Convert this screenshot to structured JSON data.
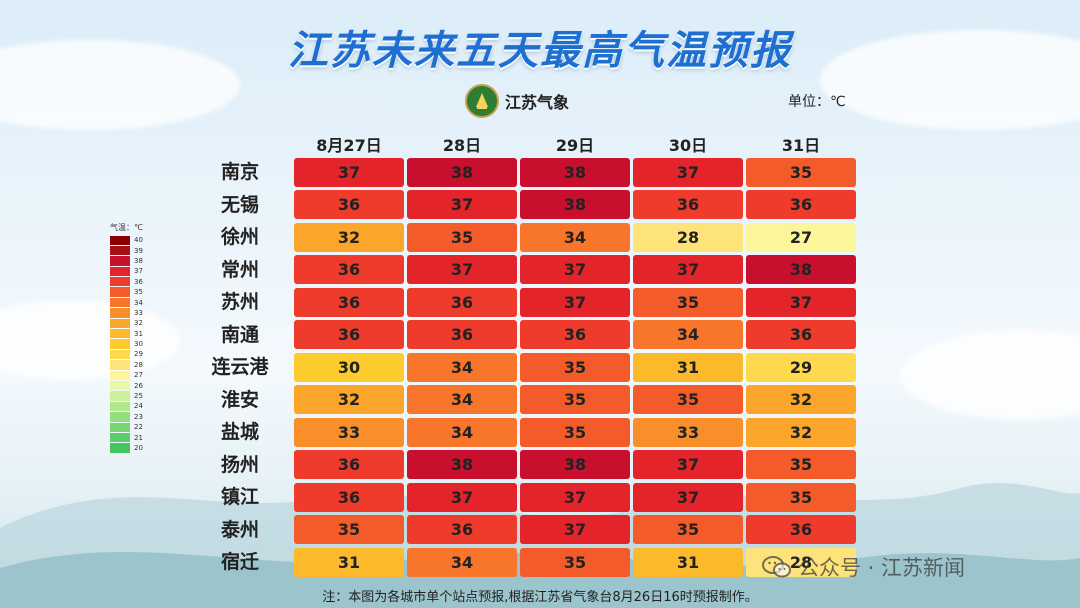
{
  "title": "江苏未来五天最高气温预报",
  "logo": {
    "text": "江苏气象"
  },
  "unit_label": "单位：℃",
  "note": "注：本图为各城市单个站点预报,根据江苏省气象台8月26日16时预报制作。",
  "watermark": {
    "text": "公众号 · 江苏新闻",
    "icon": "wechat-icon"
  },
  "legend": {
    "title": "气温：℃",
    "entries": [
      {
        "label": "40",
        "color": "#8b0000"
      },
      {
        "label": "39",
        "color": "#a50f15"
      },
      {
        "label": "38",
        "color": "#c8102e"
      },
      {
        "label": "37",
        "color": "#e3242b"
      },
      {
        "label": "36",
        "color": "#ef3b2c"
      },
      {
        "label": "35",
        "color": "#f45b2a"
      },
      {
        "label": "34",
        "color": "#f7762b"
      },
      {
        "label": "33",
        "color": "#f98f2a"
      },
      {
        "label": "32",
        "color": "#fba52a"
      },
      {
        "label": "31",
        "color": "#fdb92c"
      },
      {
        "label": "30",
        "color": "#fdcb2e"
      },
      {
        "label": "29",
        "color": "#fed84d"
      },
      {
        "label": "28",
        "color": "#fee27a"
      },
      {
        "label": "27",
        "color": "#fdf59a"
      },
      {
        "label": "26",
        "color": "#eaf7a4"
      },
      {
        "label": "25",
        "color": "#cdef9a"
      },
      {
        "label": "24",
        "color": "#b2e78d"
      },
      {
        "label": "23",
        "color": "#95de7f"
      },
      {
        "label": "22",
        "color": "#78d672"
      },
      {
        "label": "21",
        "color": "#5bcd67"
      },
      {
        "label": "20",
        "color": "#44c560"
      }
    ]
  },
  "chart_data": {
    "type": "heatmap",
    "title": "江苏未来五天最高气温预报",
    "columns": [
      "8月27日",
      "28日",
      "29日",
      "30日",
      "31日"
    ],
    "rows": [
      "南京",
      "无锡",
      "徐州",
      "常州",
      "苏州",
      "南通",
      "连云港",
      "淮安",
      "盐城",
      "扬州",
      "镇江",
      "泰州",
      "宿迁"
    ],
    "values": [
      [
        37,
        38,
        38,
        37,
        35
      ],
      [
        36,
        37,
        38,
        36,
        36
      ],
      [
        32,
        35,
        34,
        28,
        27
      ],
      [
        36,
        37,
        37,
        37,
        38
      ],
      [
        36,
        36,
        37,
        35,
        37
      ],
      [
        36,
        36,
        36,
        34,
        36
      ],
      [
        30,
        34,
        35,
        31,
        29
      ],
      [
        32,
        34,
        35,
        35,
        32
      ],
      [
        33,
        34,
        35,
        33,
        32
      ],
      [
        36,
        38,
        38,
        37,
        35
      ],
      [
        36,
        37,
        37,
        37,
        35
      ],
      [
        35,
        36,
        37,
        35,
        36
      ],
      [
        31,
        34,
        35,
        31,
        28
      ]
    ],
    "unit": "℃"
  }
}
